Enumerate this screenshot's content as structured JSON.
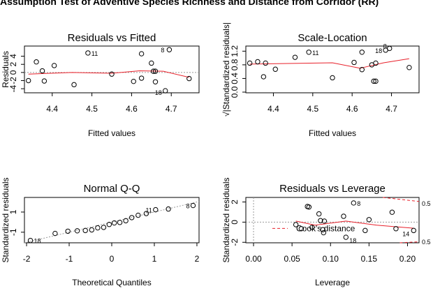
{
  "figure": {
    "title": "Assumption Test of Adventive Species Richness and Distance from Corridor (RR)"
  },
  "colors": {
    "smooth": "#e8202a",
    "points": "#000000",
    "ref": "#9a9a9a"
  },
  "chart_data": [
    {
      "type": "scatter",
      "title": "Residuals vs Fitted",
      "xlabel": "Fitted values",
      "ylabel": "Residuals",
      "xlim": [
        4.33,
        4.77
      ],
      "ylim": [
        -5,
        6.5
      ],
      "xticks": [
        4.4,
        4.5,
        4.6,
        4.7
      ],
      "yticks": [
        -4,
        -2,
        0,
        2,
        4
      ],
      "points": [
        [
          4.34,
          -2.0
        ],
        [
          4.36,
          2.6
        ],
        [
          4.375,
          0.4
        ],
        [
          4.38,
          -2.1
        ],
        [
          4.405,
          1.7
        ],
        [
          4.455,
          -3.0
        ],
        [
          4.49,
          4.8
        ],
        [
          4.55,
          -0.4
        ],
        [
          4.605,
          -2.2
        ],
        [
          4.625,
          4.6
        ],
        [
          4.625,
          -1.4
        ],
        [
          4.65,
          2.3
        ],
        [
          4.655,
          0.3
        ],
        [
          4.66,
          0.3
        ],
        [
          4.66,
          -2.3
        ],
        [
          4.685,
          -4.5
        ],
        [
          4.695,
          5.6
        ],
        [
          4.745,
          -1.5
        ]
      ],
      "smooth": [
        [
          4.34,
          -0.4
        ],
        [
          4.45,
          0.0
        ],
        [
          4.55,
          -0.2
        ],
        [
          4.62,
          0.4
        ],
        [
          4.68,
          0.3
        ],
        [
          4.745,
          -1.2
        ]
      ],
      "labels": [
        {
          "text": "11",
          "x": 4.49,
          "y": 4.8
        },
        {
          "text": "8",
          "x": 4.695,
          "y": 5.6
        },
        {
          "text": "18",
          "x": 4.685,
          "y": -4.5
        }
      ]
    },
    {
      "type": "scatter",
      "title": "Scale-Location",
      "xlabel": "Fitted values",
      "ylabel": "√|Standardized residuals|",
      "xlim": [
        4.33,
        4.77
      ],
      "ylim": [
        -0.02,
        1.35
      ],
      "xticks": [
        4.4,
        4.5,
        4.6,
        4.7
      ],
      "yticks": [
        0.0,
        0.4,
        0.8,
        1.2
      ],
      "points": [
        [
          4.34,
          0.85
        ],
        [
          4.36,
          0.89
        ],
        [
          4.375,
          0.45
        ],
        [
          4.38,
          0.85
        ],
        [
          4.405,
          0.67
        ],
        [
          4.455,
          1.02
        ],
        [
          4.49,
          1.17
        ],
        [
          4.55,
          0.42
        ],
        [
          4.605,
          0.87
        ],
        [
          4.625,
          1.17
        ],
        [
          4.625,
          0.66
        ],
        [
          4.65,
          0.8
        ],
        [
          4.655,
          0.32
        ],
        [
          4.66,
          0.32
        ],
        [
          4.66,
          0.85
        ],
        [
          4.685,
          1.23
        ],
        [
          4.695,
          1.28
        ],
        [
          4.745,
          0.72
        ]
      ],
      "smooth": [
        [
          4.34,
          0.82
        ],
        [
          4.45,
          0.84
        ],
        [
          4.55,
          0.86
        ],
        [
          4.62,
          0.7
        ],
        [
          4.68,
          0.86
        ],
        [
          4.745,
          0.98
        ]
      ],
      "labels": [
        {
          "text": "11",
          "x": 4.49,
          "y": 1.17
        },
        {
          "text": "18",
          "x": 4.685,
          "y": 1.23
        },
        {
          "text": "8",
          "x": 4.695,
          "y": 1.28
        }
      ]
    },
    {
      "type": "scatter",
      "title": "Normal Q-Q",
      "xlabel": "Theoretical Quantiles",
      "ylabel": "Standardized residuals",
      "xlim": [
        -2.05,
        2.05
      ],
      "ylim": [
        -2.05,
        2.45
      ],
      "xticks": [
        -2,
        -1,
        0,
        1,
        2
      ],
      "yticks": [
        -1,
        1
      ],
      "points": [
        [
          -1.91,
          -1.82
        ],
        [
          -1.33,
          -1.12
        ],
        [
          -1.03,
          -0.9
        ],
        [
          -0.81,
          -0.86
        ],
        [
          -0.62,
          -0.83
        ],
        [
          -0.47,
          -0.77
        ],
        [
          -0.33,
          -0.57
        ],
        [
          -0.19,
          -0.52
        ],
        [
          -0.06,
          -0.23
        ],
        [
          0.06,
          -0.08
        ],
        [
          0.19,
          -0.03
        ],
        [
          0.33,
          0.14
        ],
        [
          0.47,
          0.45
        ],
        [
          0.62,
          0.68
        ],
        [
          0.81,
          0.85
        ],
        [
          1.03,
          1.23
        ],
        [
          1.33,
          1.3
        ],
        [
          1.91,
          1.65
        ]
      ],
      "refline": [
        [
          -2.05,
          -2.05
        ],
        [
          2.05,
          2.05
        ]
      ],
      "labels": [
        {
          "text": "18",
          "x": -1.91,
          "y": -1.82
        },
        {
          "text": "11",
          "x": 1.03,
          "y": 1.23
        },
        {
          "text": "8",
          "x": 1.91,
          "y": 1.65
        }
      ]
    },
    {
      "type": "scatter",
      "title": "Residuals vs Leverage",
      "xlabel": "Leverage",
      "ylabel": "Standardized residuals",
      "xlim": [
        -0.01,
        0.215
      ],
      "ylim": [
        -2.05,
        2.45
      ],
      "xticks": [
        0.0,
        0.05,
        0.1,
        0.15,
        0.2
      ],
      "yticks": [
        -2,
        0,
        2
      ],
      "points": [
        [
          0.055,
          -0.25
        ],
        [
          0.062,
          -0.65
        ],
        [
          0.07,
          1.55
        ],
        [
          0.072,
          1.5
        ],
        [
          0.076,
          -0.52
        ],
        [
          0.085,
          0.82
        ],
        [
          0.087,
          0.15
        ],
        [
          0.09,
          -0.75
        ],
        [
          0.091,
          -1.05
        ],
        [
          0.092,
          0.1
        ],
        [
          0.117,
          0.58
        ],
        [
          0.12,
          -1.5
        ],
        [
          0.13,
          1.9
        ],
        [
          0.145,
          -0.83
        ],
        [
          0.15,
          0.25
        ],
        [
          0.18,
          0.98
        ],
        [
          0.185,
          -0.65
        ],
        [
          0.208,
          -0.83
        ]
      ],
      "smooth": [
        [
          0.055,
          0.1
        ],
        [
          0.08,
          -0.3
        ],
        [
          0.12,
          0.1
        ],
        [
          0.16,
          -0.3
        ],
        [
          0.208,
          -0.6
        ]
      ],
      "cooks": {
        "legend": "Cook's distance",
        "upper": [
          [
            0.168,
            2.45
          ],
          [
            0.215,
            2.05
          ]
        ],
        "lower": [
          [
            0.19,
            -2.05
          ],
          [
            0.215,
            -1.95
          ]
        ],
        "right_labels": [
          {
            "text": "0.5",
            "y": 1.9
          },
          {
            "text": "0.5",
            "y": -1.9
          }
        ]
      },
      "labels": [
        {
          "text": "8",
          "x": 0.13,
          "y": 1.9
        },
        {
          "text": "18",
          "x": 0.12,
          "y": -1.5
        },
        {
          "text": "14",
          "x": 0.208,
          "y": -0.83
        }
      ]
    }
  ]
}
